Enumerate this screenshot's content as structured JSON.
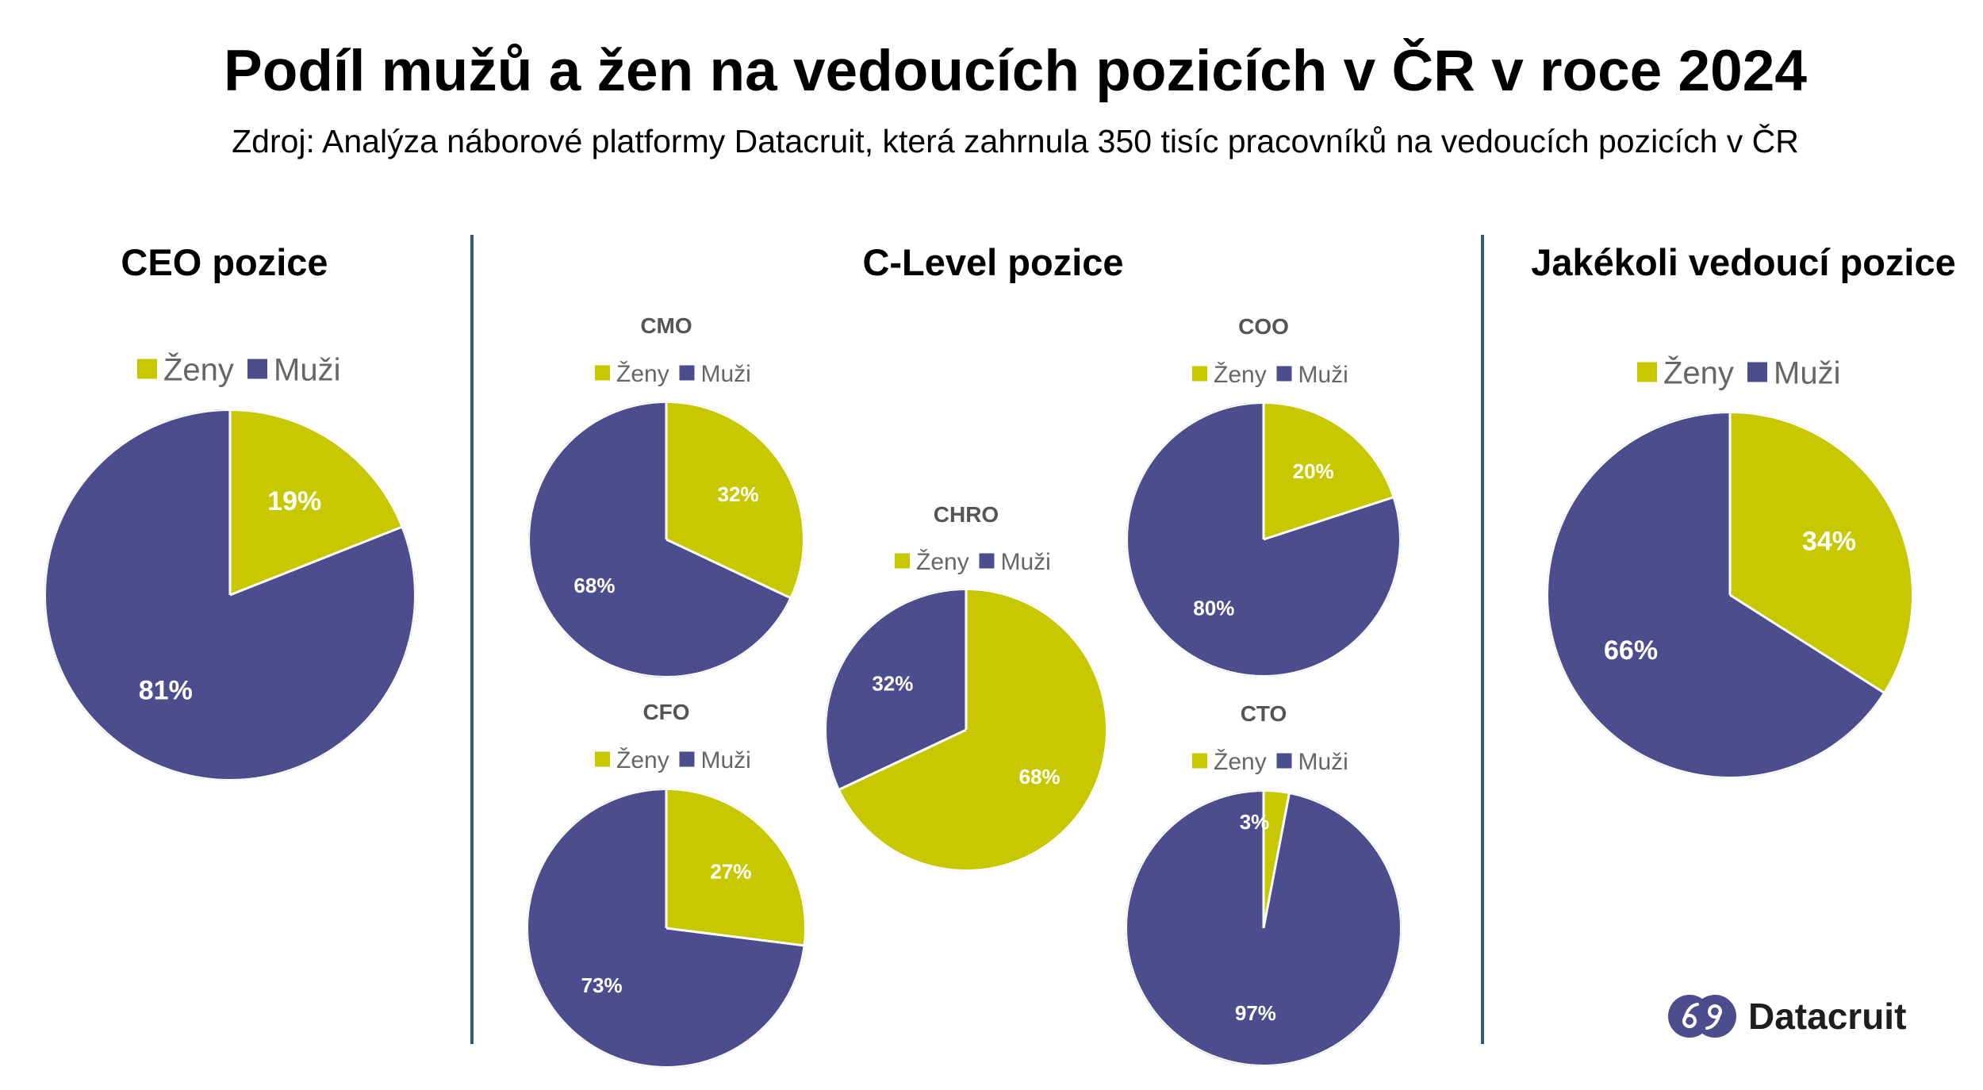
{
  "header": {
    "title": "Podíl mužů a žen na vedoucích pozicích v ČR v roce 2024",
    "subtitle": "Zdroj: Analýza náborové platformy Datacruit, která zahrnula 350 tisíc pracovníků na vedoucích pozicích v ČR"
  },
  "sections": {
    "ceo": "CEO pozice",
    "clevel": "C-Level pozice",
    "any": "Jakékoli vedoucí pozice"
  },
  "colors": {
    "zeny": "#c8c800",
    "muzi": "#4b4d8c"
  },
  "chart_data": [
    {
      "type": "pie",
      "id": "ceo",
      "title": "",
      "legend": [
        "Ženy",
        "Muži"
      ],
      "legend_placement": "top",
      "categories": [
        "Ženy",
        "Muži"
      ],
      "values": [
        19,
        81
      ],
      "labels": [
        "19%",
        "81%"
      ]
    },
    {
      "type": "pie",
      "id": "cmo",
      "title": "CMO",
      "legend": [
        "Ženy",
        "Muži"
      ],
      "legend_placement": "top",
      "categories": [
        "Ženy",
        "Muži"
      ],
      "values": [
        32,
        68
      ],
      "labels": [
        "32%",
        "68%"
      ]
    },
    {
      "type": "pie",
      "id": "cfo",
      "title": "CFO",
      "legend": [
        "Ženy",
        "Muži"
      ],
      "legend_placement": "top",
      "categories": [
        "Ženy",
        "Muži"
      ],
      "values": [
        27,
        73
      ],
      "labels": [
        "27%",
        "73%"
      ]
    },
    {
      "type": "pie",
      "id": "chro",
      "title": "CHRO",
      "legend": [
        "Ženy",
        "Muži"
      ],
      "legend_placement": "top",
      "categories": [
        "Ženy",
        "Muži"
      ],
      "values": [
        68,
        32
      ],
      "labels": [
        "68%",
        "32%"
      ]
    },
    {
      "type": "pie",
      "id": "coo",
      "title": "COO",
      "legend": [
        "Ženy",
        "Muži"
      ],
      "legend_placement": "top",
      "categories": [
        "Ženy",
        "Muži"
      ],
      "values": [
        20,
        80
      ],
      "labels": [
        "20%",
        "80%"
      ]
    },
    {
      "type": "pie",
      "id": "cto",
      "title": "CTO",
      "legend": [
        "Ženy",
        "Muži"
      ],
      "legend_placement": "top",
      "categories": [
        "Ženy",
        "Muži"
      ],
      "values": [
        3,
        97
      ],
      "labels": [
        "3%",
        "97%"
      ]
    },
    {
      "type": "pie",
      "id": "any",
      "title": "",
      "legend": [
        "Ženy",
        "Muži"
      ],
      "legend_placement": "top",
      "categories": [
        "Ženy",
        "Muži"
      ],
      "values": [
        34,
        66
      ],
      "labels": [
        "34%",
        "66%"
      ]
    }
  ],
  "logo": {
    "text": "Datacruit"
  }
}
